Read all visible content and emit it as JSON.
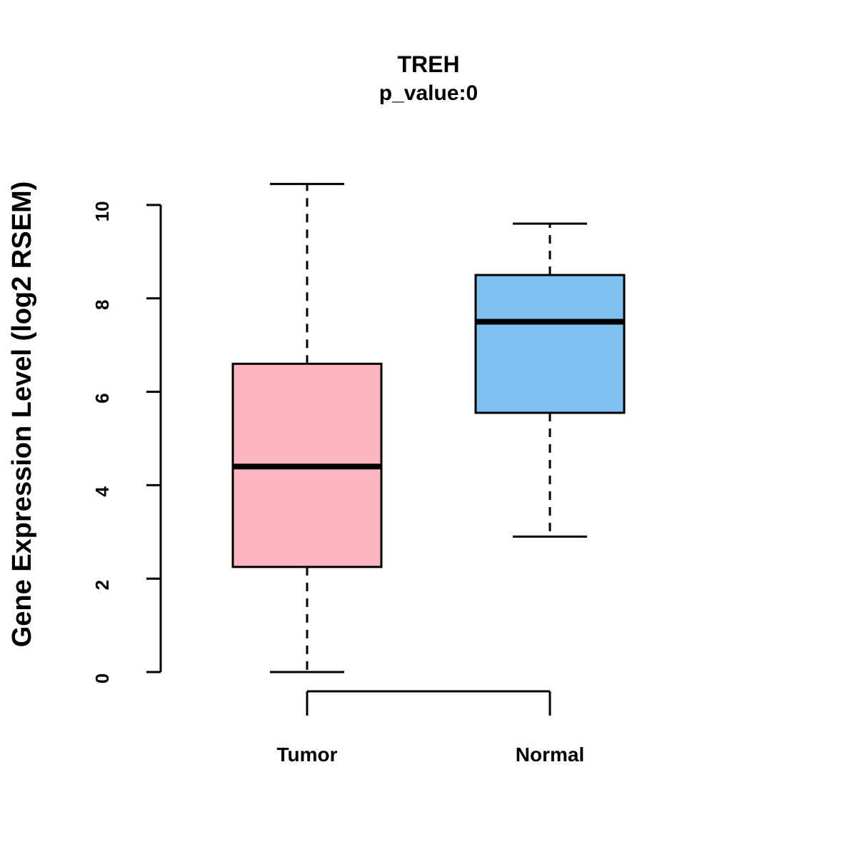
{
  "chart_data": {
    "type": "boxplot",
    "title": "TREH",
    "subtitle": "p_value:0",
    "ylabel": "Gene Expression Level (log2 RSEM)",
    "xlabel": "",
    "categories": [
      "Tumor",
      "Normal"
    ],
    "series": [
      {
        "name": "Tumor",
        "color": "#FFB6C1",
        "whisker_low": 0,
        "q1": 2.25,
        "median": 4.4,
        "q3": 6.6,
        "whisker_high": 10.45
      },
      {
        "name": "Normal",
        "color": "#7EC0EE",
        "whisker_low": 2.9,
        "q1": 5.55,
        "median": 7.5,
        "q3": 8.5,
        "whisker_high": 9.6
      }
    ],
    "yticks": [
      0,
      2,
      4,
      6,
      8,
      10
    ],
    "ylim": [
      0,
      10
    ],
    "grid": false,
    "legend": "none",
    "stroke_color": "#000000",
    "background_color": "#ffffff"
  }
}
